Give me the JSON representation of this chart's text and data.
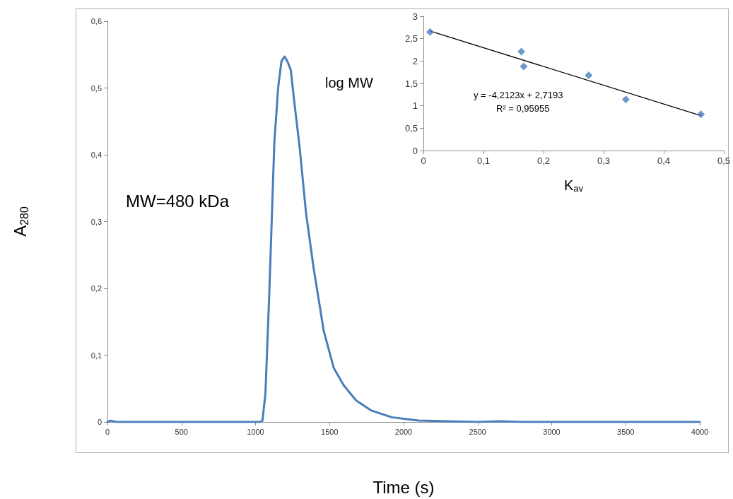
{
  "chart_data": [
    {
      "type": "line",
      "xlabel": "Time (s)",
      "ylabel": "A$_{280}$",
      "annotations": [
        "MW=480 kDa"
      ],
      "xlim": [
        0,
        4000
      ],
      "xticks": [
        0,
        500,
        1000,
        1500,
        2000,
        2500,
        3000,
        3500,
        4000
      ],
      "ylim": [
        0,
        0.6
      ],
      "yticks": [
        {
          "value": 0,
          "label": "0"
        },
        {
          "value": 0.1,
          "label": "0,1"
        },
        {
          "value": 0.2,
          "label": "0,2"
        },
        {
          "value": 0.3,
          "label": "0,3"
        },
        {
          "value": 0.4,
          "label": "0,4"
        },
        {
          "value": 0.5,
          "label": "0,5"
        },
        {
          "value": 0.6,
          "label": "0,6"
        }
      ],
      "grid": false,
      "marker": "none",
      "line_style": "solid",
      "series": [
        {
          "color": "#4a7ebb",
          "x": [
            0,
            20,
            60,
            500,
            1000,
            1030,
            1047,
            1067,
            1093,
            1110,
            1127,
            1153,
            1175,
            1196,
            1215,
            1238,
            1264,
            1298,
            1341,
            1392,
            1460,
            1528,
            1595,
            1680,
            1783,
            1920,
            2100,
            2300,
            2500,
            2650,
            2800,
            3000,
            3500,
            4000
          ],
          "values": [
            0,
            0.002,
            0,
            0,
            0,
            0,
            0.002,
            0.043,
            0.193,
            0.306,
            0.418,
            0.501,
            0.54,
            0.547,
            0.54,
            0.527,
            0.475,
            0.411,
            0.313,
            0.231,
            0.137,
            0.081,
            0.055,
            0.032,
            0.017,
            0.007,
            0.002,
            0.001,
            0,
            0.001,
            0,
            0,
            0,
            0
          ]
        }
      ]
    },
    {
      "type": "scatter",
      "xlabel": "K$_{av}$",
      "ylabel": "log MW",
      "annotations": [
        "y = -4,2123x + 2,7193",
        "R² = 0,95955"
      ],
      "xlim": [
        0,
        0.5
      ],
      "xticks": [
        {
          "value": 0,
          "label": "0"
        },
        {
          "value": 0.1,
          "label": "0,1"
        },
        {
          "value": 0.2,
          "label": "0,2"
        },
        {
          "value": 0.3,
          "label": "0,3"
        },
        {
          "value": 0.4,
          "label": "0,4"
        },
        {
          "value": 0.5,
          "label": "0,5"
        }
      ],
      "ylim": [
        0,
        3
      ],
      "yticks": [
        0,
        {
          "value": 0.5,
          "label": "0,5"
        },
        1,
        {
          "value": 1.5,
          "label": "1,5"
        },
        2,
        {
          "value": 2.5,
          "label": "2,5"
        },
        3
      ],
      "grid": false,
      "marker": "diamond",
      "series": [
        {
          "color": "#4a7ebb",
          "x": [
            0.011,
            0.163,
            0.167,
            0.275,
            0.337,
            0.462
          ],
          "values": [
            2.65,
            2.21,
            1.88,
            1.68,
            1.14,
            0.81
          ]
        },
        {
          "type": "line",
          "marker": "none",
          "color": "#000000",
          "x": [
            0.011,
            0.462
          ],
          "values": [
            2.67,
            0.78
          ]
        }
      ]
    }
  ]
}
